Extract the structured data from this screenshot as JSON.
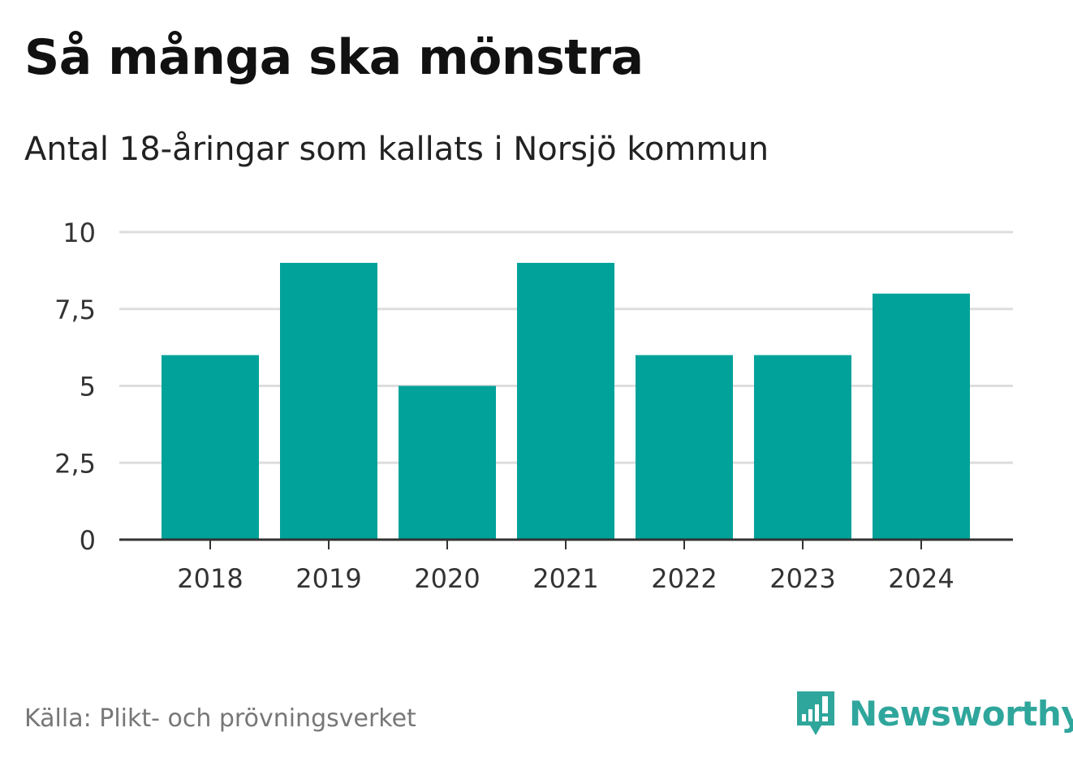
{
  "header": {
    "title": "Så många ska mönstra",
    "subtitle": "Antal 18-åringar som kallats i Norsjö kommun"
  },
  "chart_data": {
    "type": "bar",
    "categories": [
      "2018",
      "2019",
      "2020",
      "2021",
      "2022",
      "2023",
      "2024"
    ],
    "values": [
      6,
      9,
      5,
      9,
      6,
      6,
      8
    ],
    "title": "Så många ska mönstra",
    "subtitle": "Antal 18-åringar som kallats i Norsjö kommun",
    "xlabel": "",
    "ylabel": "",
    "ylim": [
      0,
      10
    ],
    "yticks": [
      0,
      2.5,
      5,
      7.5,
      10
    ],
    "ytick_labels": [
      "0",
      "2,5",
      "5",
      "7,5",
      "10"
    ],
    "grid": true,
    "bar_color": "#00a29a"
  },
  "footer": {
    "source": "Källa: Plikt- och prövningsverket",
    "brand": "Newsworthy",
    "brand_color": "#2fa69c"
  }
}
